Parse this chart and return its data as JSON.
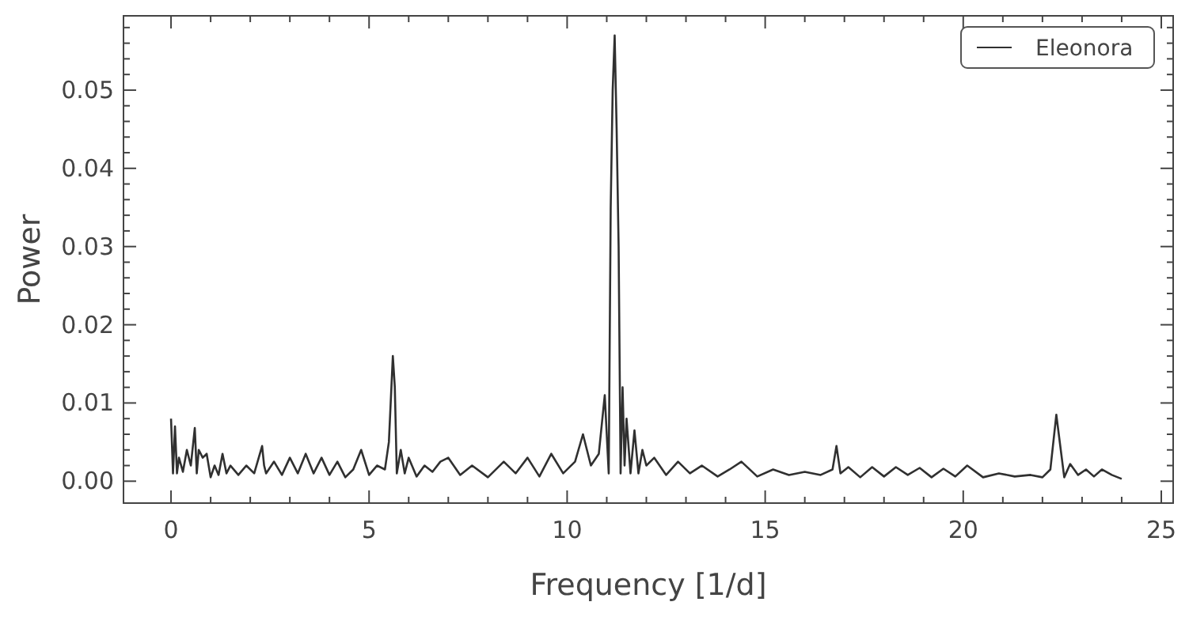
{
  "chart_data": {
    "type": "line",
    "xlabel": "Frequency [1/d]",
    "ylabel": "Power",
    "legend": "top right",
    "grid": false,
    "xlim": [
      -1.2,
      25.3
    ],
    "ylim": [
      -0.0028,
      0.0595
    ],
    "xticks": [
      0,
      {
        "value": 1,
        "label": null
      },
      {
        "value": 2,
        "label": null
      },
      {
        "value": 3,
        "label": null
      },
      {
        "value": 4,
        "label": null
      },
      5,
      {
        "value": 6,
        "label": null
      },
      {
        "value": 7,
        "label": null
      },
      {
        "value": 8,
        "label": null
      },
      {
        "value": 9,
        "label": null
      },
      10,
      {
        "value": 11,
        "label": null
      },
      {
        "value": 12,
        "label": null
      },
      {
        "value": 13,
        "label": null
      },
      {
        "value": 14,
        "label": null
      },
      15,
      {
        "value": 16,
        "label": null
      },
      {
        "value": 17,
        "label": null
      },
      {
        "value": 18,
        "label": null
      },
      {
        "value": 19,
        "label": null
      },
      20,
      {
        "value": 21,
        "label": null
      },
      {
        "value": 22,
        "label": null
      },
      {
        "value": 23,
        "label": null
      },
      {
        "value": 24,
        "label": null
      },
      25
    ],
    "yticks": [
      {
        "value": 0,
        "label": "0.00"
      },
      {
        "value": 0.002,
        "label": null
      },
      {
        "value": 0.004,
        "label": null
      },
      {
        "value": 0.006,
        "label": null
      },
      {
        "value": 0.008,
        "label": null
      },
      {
        "value": 0.01,
        "label": "0.01"
      },
      {
        "value": 0.012,
        "label": null
      },
      {
        "value": 0.014,
        "label": null
      },
      {
        "value": 0.016,
        "label": null
      },
      {
        "value": 0.018,
        "label": null
      },
      {
        "value": 0.02,
        "label": "0.02"
      },
      {
        "value": 0.022,
        "label": null
      },
      {
        "value": 0.024,
        "label": null
      },
      {
        "value": 0.026,
        "label": null
      },
      {
        "value": 0.028,
        "label": null
      },
      {
        "value": 0.03,
        "label": "0.03"
      },
      {
        "value": 0.032,
        "label": null
      },
      {
        "value": 0.034,
        "label": null
      },
      {
        "value": 0.036,
        "label": null
      },
      {
        "value": 0.038,
        "label": null
      },
      {
        "value": 0.04,
        "label": "0.04"
      },
      {
        "value": 0.042,
        "label": null
      },
      {
        "value": 0.044,
        "label": null
      },
      {
        "value": 0.046,
        "label": null
      },
      {
        "value": 0.048,
        "label": null
      },
      {
        "value": 0.05,
        "label": "0.05"
      },
      {
        "value": 0.052,
        "label": null
      },
      {
        "value": 0.054,
        "label": null
      },
      {
        "value": 0.056,
        "label": null
      },
      {
        "value": 0.058,
        "label": null
      }
    ],
    "series": [
      {
        "name": "Eleonora",
        "color": "#303030",
        "x": [
          0,
          0.05,
          0.1,
          0.15,
          0.2,
          0.3,
          0.4,
          0.5,
          0.6,
          0.65,
          0.7,
          0.8,
          0.9,
          1.0,
          1.1,
          1.2,
          1.3,
          1.4,
          1.5,
          1.7,
          1.9,
          2.1,
          2.3,
          2.35,
          2.4,
          2.6,
          2.8,
          3.0,
          3.2,
          3.4,
          3.6,
          3.8,
          4.0,
          4.2,
          4.4,
          4.6,
          4.8,
          5.0,
          5.2,
          5.4,
          5.5,
          5.6,
          5.65,
          5.7,
          5.8,
          5.9,
          6.0,
          6.2,
          6.4,
          6.6,
          6.8,
          7.0,
          7.3,
          7.6,
          8.0,
          8.4,
          8.7,
          9.0,
          9.3,
          9.6,
          9.9,
          10.2,
          10.4,
          10.6,
          10.8,
          10.95,
          11.05,
          11.1,
          11.15,
          11.2,
          11.25,
          11.3,
          11.35,
          11.4,
          11.45,
          11.5,
          11.6,
          11.7,
          11.8,
          11.9,
          12.0,
          12.2,
          12.5,
          12.8,
          13.1,
          13.4,
          13.8,
          14.1,
          14.4,
          14.8,
          15.2,
          15.6,
          16.0,
          16.4,
          16.7,
          16.8,
          16.9,
          17.1,
          17.4,
          17.7,
          18.0,
          18.3,
          18.6,
          18.9,
          19.2,
          19.5,
          19.8,
          20.1,
          20.5,
          20.9,
          21.3,
          21.7,
          22.0,
          22.2,
          22.35,
          22.45,
          22.55,
          22.7,
          22.9,
          23.1,
          23.3,
          23.5,
          23.75,
          24.0
        ],
        "values": [
          0.008,
          0.001,
          0.007,
          0.001,
          0.003,
          0.0012,
          0.004,
          0.002,
          0.0068,
          0.001,
          0.004,
          0.003,
          0.0035,
          0.0005,
          0.002,
          0.0008,
          0.0035,
          0.001,
          0.002,
          0.0008,
          0.002,
          0.001,
          0.0045,
          0.002,
          0.001,
          0.0025,
          0.0008,
          0.003,
          0.001,
          0.0035,
          0.001,
          0.003,
          0.0008,
          0.0025,
          0.0005,
          0.0015,
          0.004,
          0.0008,
          0.002,
          0.0015,
          0.005,
          0.016,
          0.012,
          0.001,
          0.004,
          0.001,
          0.003,
          0.0006,
          0.002,
          0.0012,
          0.0025,
          0.003,
          0.0008,
          0.002,
          0.0005,
          0.0025,
          0.001,
          0.003,
          0.0006,
          0.0035,
          0.001,
          0.0025,
          0.006,
          0.002,
          0.0035,
          0.011,
          0.001,
          0.035,
          0.05,
          0.057,
          0.045,
          0.03,
          0.001,
          0.012,
          0.002,
          0.008,
          0.001,
          0.0065,
          0.001,
          0.004,
          0.002,
          0.003,
          0.0008,
          0.0025,
          0.001,
          0.002,
          0.0006,
          0.0015,
          0.0025,
          0.0006,
          0.0015,
          0.0008,
          0.0012,
          0.0008,
          0.0015,
          0.0045,
          0.001,
          0.0018,
          0.0005,
          0.0018,
          0.0006,
          0.0018,
          0.0008,
          0.0017,
          0.0005,
          0.0016,
          0.0006,
          0.002,
          0.0005,
          0.001,
          0.0006,
          0.0008,
          0.0005,
          0.0015,
          0.0085,
          0.0045,
          0.0005,
          0.0022,
          0.0008,
          0.0015,
          0.0006,
          0.0015,
          0.0008,
          0.0003
        ]
      }
    ]
  }
}
